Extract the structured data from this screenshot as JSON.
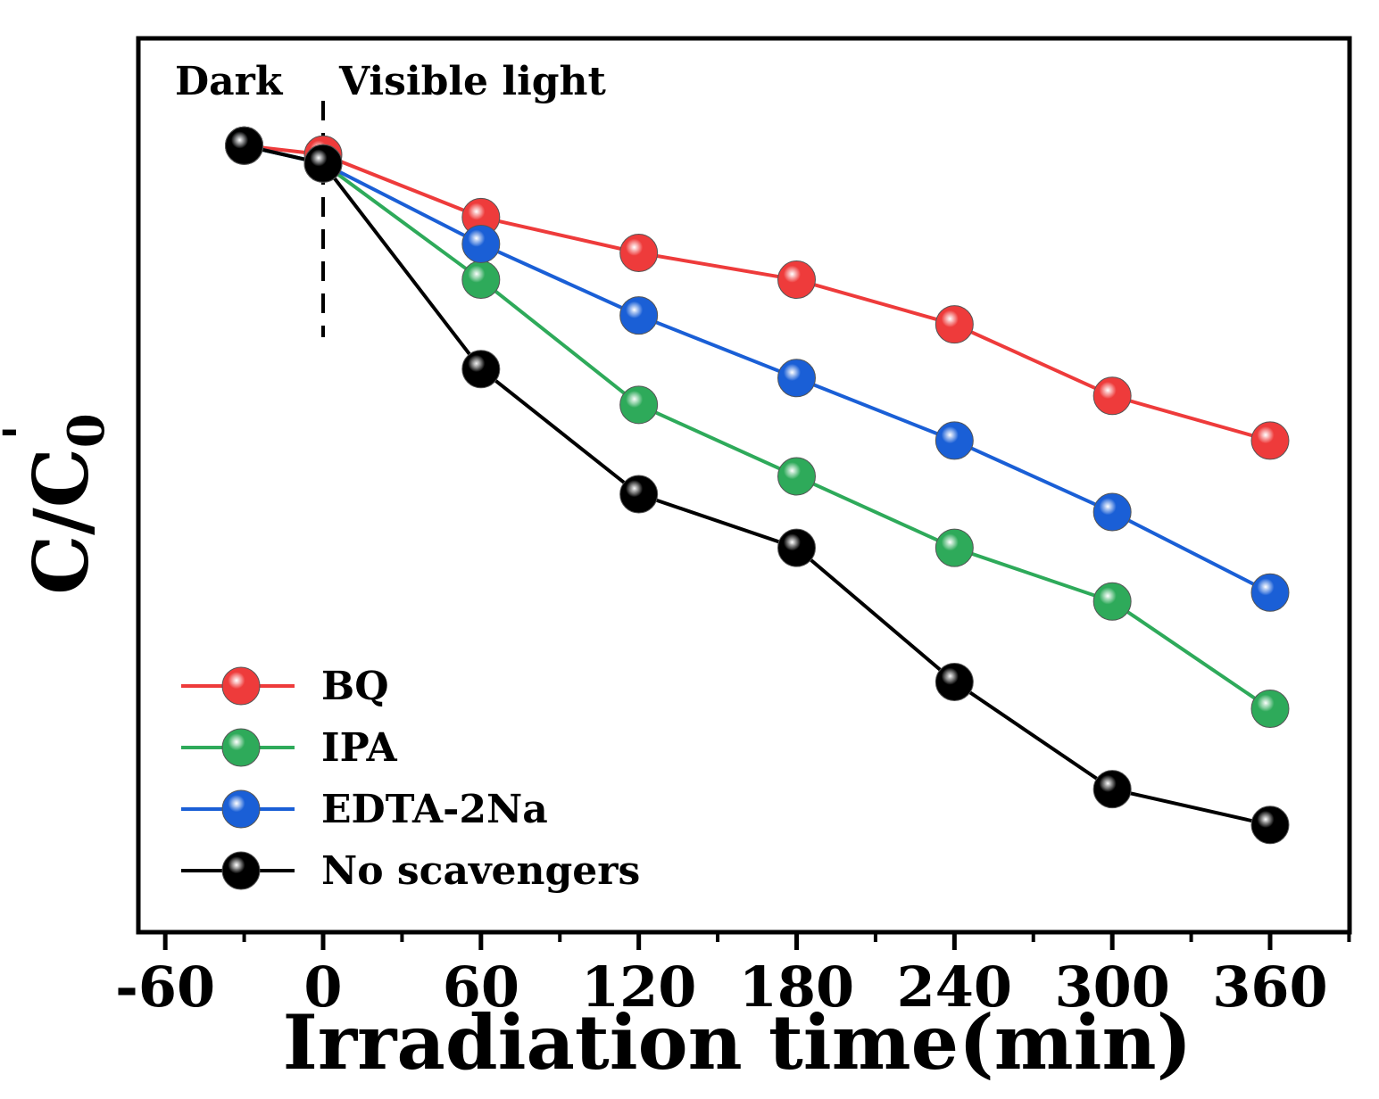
{
  "chart_data": {
    "type": "line",
    "title": "",
    "xlabel": "Irradiation time(min)",
    "ylabel": "C/C",
    "ylabel_subscript": "0",
    "ylabel_superscript": "'",
    "xlim": [
      -60,
      390
    ],
    "ylim": [
      0.0,
      1.0
    ],
    "x_ticks": [
      -60,
      0,
      60,
      120,
      180,
      240,
      300,
      360
    ],
    "x_tick_labels": [
      "-60",
      "0",
      "60",
      "120",
      "180",
      "240",
      "300",
      "360"
    ],
    "y_ticks_shown": false,
    "grid": false,
    "legend_position": "bottom-left",
    "annotations": [
      {
        "text": "Dark",
        "region": "before x=0"
      },
      {
        "text": "Visible light",
        "region": "after x=0"
      }
    ],
    "divider_x": 0,
    "series": [
      {
        "name": "BQ",
        "color": "#ee3b3b",
        "x": [
          -30,
          0,
          60,
          120,
          180,
          240,
          300,
          360
        ],
        "values": [
          0.88,
          0.87,
          0.8,
          0.76,
          0.73,
          0.68,
          0.6,
          0.55
        ]
      },
      {
        "name": "IPA",
        "color": "#2eaa5a",
        "x": [
          -30,
          0,
          60,
          120,
          180,
          240,
          300,
          360
        ],
        "values": [
          0.88,
          0.86,
          0.73,
          0.59,
          0.51,
          0.43,
          0.37,
          0.25
        ]
      },
      {
        "name": "EDTA-2Na",
        "color": "#1a5fd6",
        "x": [
          -30,
          0,
          60,
          120,
          180,
          240,
          300,
          360
        ],
        "values": [
          0.88,
          0.86,
          0.77,
          0.69,
          0.62,
          0.55,
          0.47,
          0.38
        ]
      },
      {
        "name": "No scavengers",
        "color": "#000000",
        "x": [
          -30,
          0,
          60,
          120,
          180,
          240,
          300,
          360
        ],
        "values": [
          0.88,
          0.86,
          0.63,
          0.49,
          0.43,
          0.28,
          0.16,
          0.12
        ]
      }
    ]
  }
}
